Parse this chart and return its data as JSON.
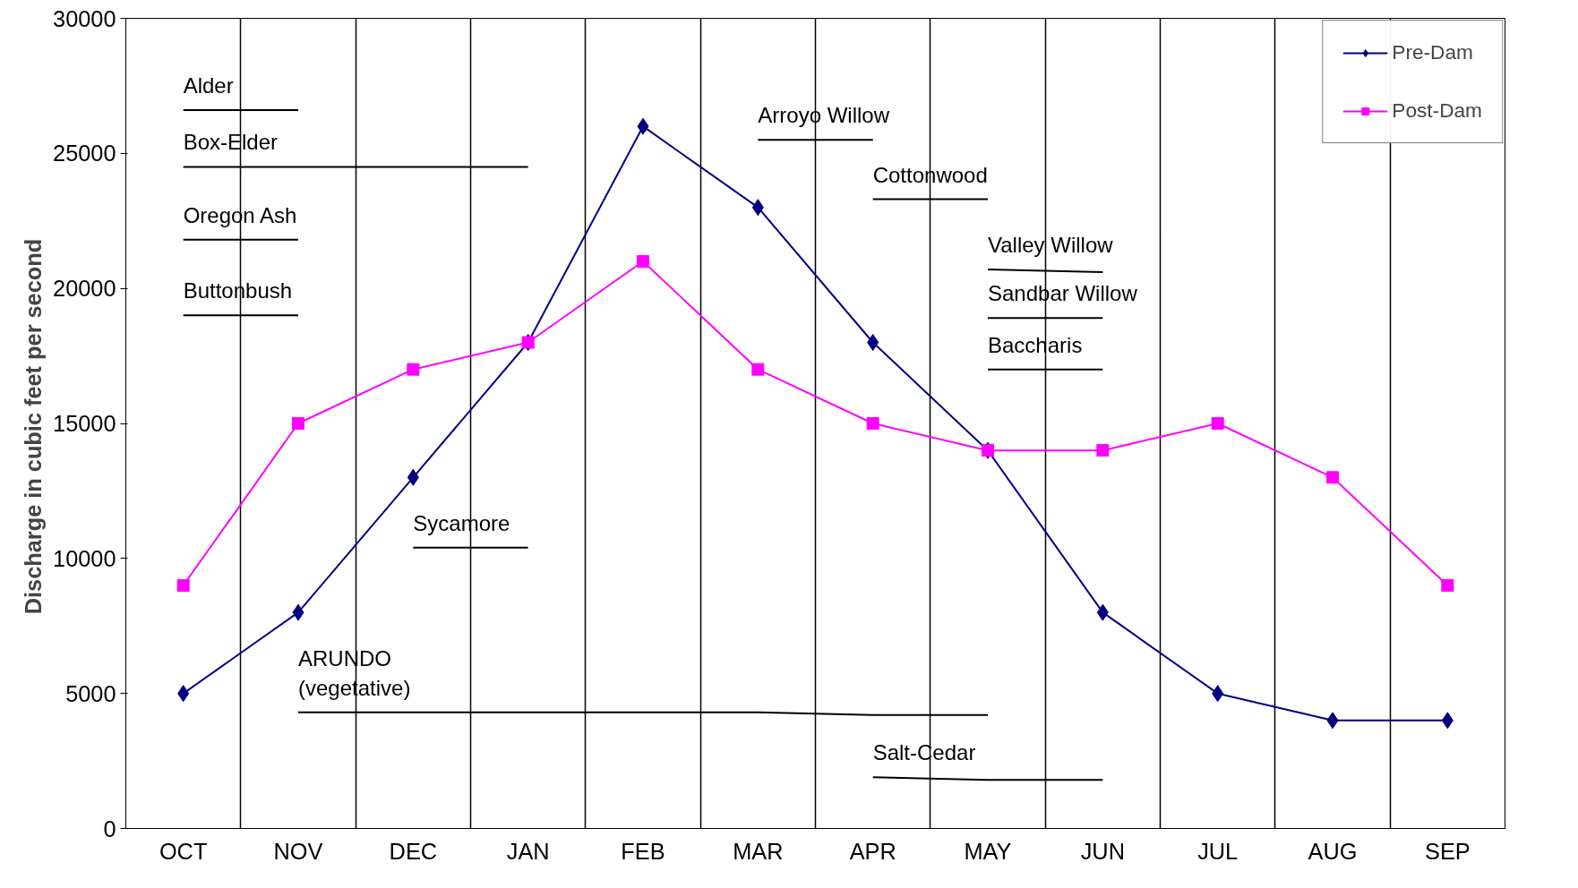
{
  "chart_data": {
    "type": "line",
    "ylabel": "Discharge  in cubic feet per second",
    "categories": [
      "OCT",
      "NOV",
      "DEC",
      "JAN",
      "FEB",
      "MAR",
      "APR",
      "MAY",
      "JUN",
      "JUL",
      "AUG",
      "SEP"
    ],
    "ylim": [
      0,
      30000
    ],
    "yticks": [
      0,
      5000,
      10000,
      15000,
      20000,
      25000,
      30000
    ],
    "grid": "x",
    "legend": "top right",
    "series": [
      {
        "name": "Pre-Dam",
        "color": "#000080",
        "marker": "diamond",
        "values": [
          5000,
          8000,
          13000,
          18000,
          26000,
          23000,
          18000,
          14000,
          8000,
          5000,
          4000,
          4000
        ]
      },
      {
        "name": "Post-Dam",
        "color": "#ff00ff",
        "marker": "square",
        "values": [
          9000,
          15000,
          17000,
          18000,
          21000,
          17000,
          15000,
          14000,
          14000,
          15000,
          13000,
          9000
        ]
      },
      {
        "name": "Alder",
        "color": "#000000",
        "marker": "none",
        "values": [
          26600,
          26600,
          null,
          null,
          null,
          null,
          null,
          null,
          null,
          null,
          null,
          null
        ]
      },
      {
        "name": "Box-Elder",
        "color": "#000000",
        "marker": "none",
        "values": [
          24500,
          24500,
          24500,
          24500,
          null,
          null,
          null,
          null,
          null,
          null,
          null,
          null
        ]
      },
      {
        "name": "Oregon  Ash",
        "color": "#000000",
        "marker": "none",
        "values": [
          21800,
          21800,
          null,
          null,
          null,
          null,
          null,
          null,
          null,
          null,
          null,
          null
        ]
      },
      {
        "name": "Buttonbush",
        "color": "#000000",
        "marker": "none",
        "values": [
          19000,
          19000,
          null,
          null,
          null,
          null,
          null,
          null,
          null,
          null,
          null,
          null
        ]
      },
      {
        "name": "Sycamore",
        "color": "#000000",
        "marker": "none",
        "values": [
          null,
          null,
          10400,
          10400,
          null,
          null,
          null,
          null,
          null,
          null,
          null,
          null
        ]
      },
      {
        "name": "ARUNDO\n(vegetative)",
        "color": "#000000",
        "marker": "none",
        "values": [
          null,
          4300,
          4300,
          4300,
          4300,
          4300,
          4200,
          4200,
          null,
          null,
          null,
          null
        ]
      },
      {
        "name": "Salt-Cedar",
        "color": "#000000",
        "marker": "none",
        "values": [
          null,
          null,
          null,
          null,
          null,
          null,
          1900,
          1800,
          1800,
          null,
          null,
          null
        ]
      },
      {
        "name": "Arroyo  Willow",
        "color": "#000000",
        "marker": "none",
        "values": [
          null,
          null,
          null,
          null,
          null,
          25500,
          25500,
          null,
          null,
          null,
          null,
          null
        ]
      },
      {
        "name": "Cottonwood",
        "color": "#000000",
        "marker": "none",
        "values": [
          null,
          null,
          null,
          null,
          null,
          null,
          23300,
          23300,
          null,
          null,
          null,
          null
        ]
      },
      {
        "name": "Valley  Willow",
        "color": "#000000",
        "marker": "none",
        "values": [
          null,
          null,
          null,
          null,
          null,
          null,
          null,
          20700,
          20600,
          null,
          null,
          null
        ]
      },
      {
        "name": "Sandbar  Willow",
        "color": "#000000",
        "marker": "none",
        "values": [
          null,
          null,
          null,
          null,
          null,
          null,
          null,
          18900,
          18900,
          null,
          null,
          null
        ]
      },
      {
        "name": "Baccharis",
        "color": "#000000",
        "marker": "none",
        "values": [
          null,
          null,
          null,
          null,
          null,
          null,
          null,
          17000,
          17000,
          null,
          null,
          null
        ]
      }
    ]
  }
}
